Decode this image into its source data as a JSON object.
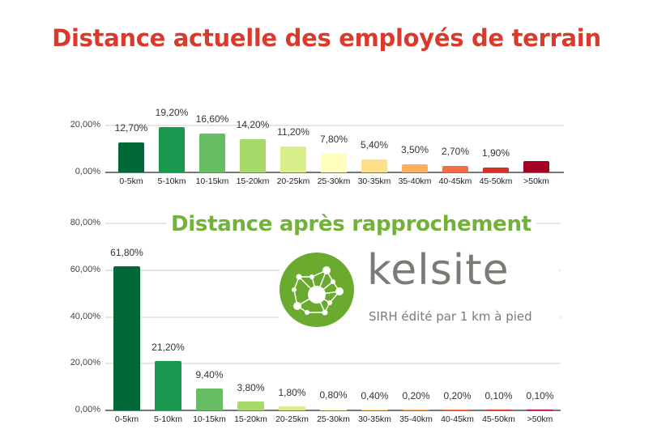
{
  "title": "Distance actuelle des employés de terrain",
  "subtitle": "Distance après rapprochement",
  "logo": {
    "name": "kelsite",
    "tagline": "SIRH édité par 1 km à pied"
  },
  "colors": {
    "title": "#d93a2b",
    "subtitle": "#72b23a",
    "bars": [
      "#006837",
      "#1a9850",
      "#66bd63",
      "#a6d96a",
      "#d9ef8b",
      "#ffffbf",
      "#fee08b",
      "#fdae61",
      "#f46d43",
      "#d73027",
      "#a50026"
    ]
  },
  "chart_data": [
    {
      "type": "bar",
      "title": "Distance actuelle des employés de terrain",
      "categories": [
        "0-5km",
        "5-10km",
        "10-15km",
        "15-20km",
        "20-25km",
        "25-30km",
        "30-35km",
        "35-40km",
        "40-45km",
        "45-50km",
        ">50km"
      ],
      "values": [
        12.7,
        19.2,
        16.6,
        14.2,
        11.2,
        7.8,
        5.4,
        3.5,
        2.7,
        1.9,
        4.8
      ],
      "labels": [
        "12,70%",
        "19,20%",
        "16,60%",
        "14,20%",
        "11,20%",
        "7,80%",
        "5,40%",
        "3,50%",
        "2,70%",
        "1,90%",
        ""
      ],
      "yticks": [
        "0,00%",
        "20,00%"
      ],
      "ylim": [
        0,
        20
      ],
      "xlabel": "",
      "ylabel": "",
      "grid": true
    },
    {
      "type": "bar",
      "title": "Distance après rapprochement",
      "categories": [
        "0-5km",
        "5-10km",
        "10-15km",
        "15-20km",
        "20-25km",
        "25-30km",
        "30-35km",
        "35-40km",
        "40-45km",
        "45-50km",
        ">50km"
      ],
      "values": [
        61.8,
        21.2,
        9.4,
        3.8,
        1.8,
        0.8,
        0.4,
        0.2,
        0.2,
        0.1,
        0.1
      ],
      "labels": [
        "61,80%",
        "21,20%",
        "9,40%",
        "3,80%",
        "1,80%",
        "0,80%",
        "0,40%",
        "0,20%",
        "0,20%",
        "0,10%",
        "0,10%"
      ],
      "yticks": [
        "0,00%",
        "20,00%",
        "40,00%",
        "60,00%",
        "80,00%"
      ],
      "ylim": [
        0,
        80
      ],
      "xlabel": "",
      "ylabel": "",
      "grid": true
    }
  ]
}
